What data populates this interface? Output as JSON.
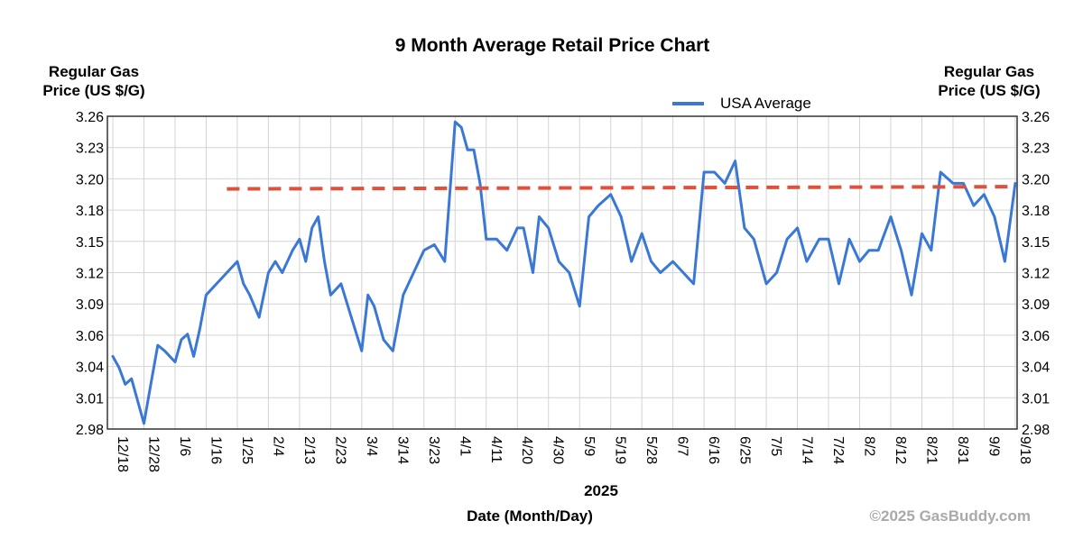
{
  "chart_data": {
    "type": "line",
    "title": "9 Month Average Retail Price Chart",
    "ylabel_left": [
      "Regular Gas",
      "Price (US $/G)"
    ],
    "ylabel_right": [
      "Regular Gas",
      "Price (US $/G)"
    ],
    "xlabel": "Date (Month/Day)",
    "year_label": "2025",
    "copyright": "©2025 GasBuddy.com",
    "ylim": [
      2.98,
      3.26
    ],
    "y_ticks": [
      "3.26",
      "3.23",
      "3.20",
      "3.18",
      "3.15",
      "3.12",
      "3.09",
      "3.06",
      "3.04",
      "3.01",
      "2.98"
    ],
    "x_ticks": [
      "12/18",
      "12/28",
      "1/6",
      "1/16",
      "1/25",
      "2/4",
      "2/13",
      "2/23",
      "3/4",
      "3/14",
      "3/23",
      "4/1",
      "4/11",
      "4/20",
      "4/30",
      "5/9",
      "5/19",
      "5/28",
      "6/7",
      "6/16",
      "6/25",
      "7/5",
      "7/14",
      "7/24",
      "8/2",
      "8/12",
      "8/21",
      "8/31",
      "9/9",
      "9/18"
    ],
    "grid": true,
    "legend": {
      "position": "top-right",
      "entries": [
        {
          "name": "USA Average",
          "color": "#3a78d6",
          "style": "solid"
        }
      ]
    },
    "series": [
      {
        "name": "USA Average",
        "color": "#3a78d6",
        "x": [
          "12/18",
          "12/20",
          "12/22",
          "12/24",
          "12/26",
          "12/28",
          "12/30",
          "1/1",
          "1/3",
          "1/6",
          "1/8",
          "1/10",
          "1/12",
          "1/14",
          "1/16",
          "1/19",
          "1/22",
          "1/25",
          "1/27",
          "1/29",
          "2/1",
          "2/4",
          "2/6",
          "2/8",
          "2/11",
          "2/13",
          "2/15",
          "2/17",
          "2/19",
          "2/21",
          "2/23",
          "2/26",
          "3/1",
          "3/4",
          "3/6",
          "3/8",
          "3/11",
          "3/14",
          "3/17",
          "3/20",
          "3/23",
          "3/26",
          "3/29",
          "4/1",
          "4/3",
          "4/5",
          "4/7",
          "4/9",
          "4/11",
          "4/14",
          "4/17",
          "4/20",
          "4/22",
          "4/25",
          "4/27",
          "4/30",
          "5/3",
          "5/6",
          "5/9",
          "5/12",
          "5/15",
          "5/19",
          "5/22",
          "5/25",
          "5/28",
          "5/31",
          "6/3",
          "6/7",
          "6/10",
          "6/13",
          "6/16",
          "6/19",
          "6/22",
          "6/25",
          "6/28",
          "7/1",
          "7/5",
          "7/8",
          "7/11",
          "7/14",
          "7/17",
          "7/21",
          "7/24",
          "7/27",
          "7/30",
          "8/2",
          "8/5",
          "8/8",
          "8/12",
          "8/15",
          "8/18",
          "8/21",
          "8/24",
          "8/27",
          "8/31",
          "9/3",
          "9/6",
          "9/9",
          "9/12",
          "9/15",
          "9/18"
        ],
        "values": [
          3.045,
          3.035,
          3.02,
          3.025,
          3.005,
          2.985,
          3.02,
          3.055,
          3.05,
          3.04,
          3.06,
          3.065,
          3.045,
          3.07,
          3.1,
          3.11,
          3.12,
          3.13,
          3.11,
          3.1,
          3.08,
          3.12,
          3.13,
          3.12,
          3.14,
          3.15,
          3.13,
          3.16,
          3.17,
          3.13,
          3.1,
          3.11,
          3.08,
          3.05,
          3.1,
          3.09,
          3.06,
          3.05,
          3.1,
          3.12,
          3.14,
          3.145,
          3.13,
          3.255,
          3.25,
          3.23,
          3.23,
          3.2,
          3.15,
          3.15,
          3.14,
          3.16,
          3.16,
          3.12,
          3.17,
          3.16,
          3.13,
          3.12,
          3.09,
          3.17,
          3.18,
          3.19,
          3.17,
          3.13,
          3.155,
          3.13,
          3.12,
          3.13,
          3.12,
          3.11,
          3.21,
          3.21,
          3.2,
          3.22,
          3.16,
          3.15,
          3.11,
          3.12,
          3.15,
          3.16,
          3.13,
          3.15,
          3.15,
          3.11,
          3.15,
          3.13,
          3.14,
          3.14,
          3.17,
          3.14,
          3.1,
          3.155,
          3.14,
          3.21,
          3.2,
          3.2,
          3.18,
          3.19,
          3.17,
          3.13,
          3.2
        ]
      },
      {
        "name": "",
        "color": "#e0503a",
        "style": "dashed",
        "x": [
          "1/22",
          "9/18"
        ],
        "values": [
          3.195,
          3.197
        ]
      }
    ]
  }
}
